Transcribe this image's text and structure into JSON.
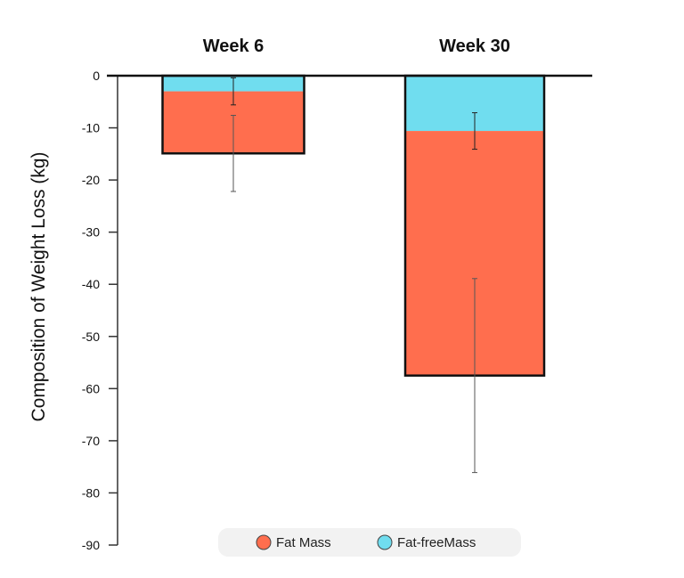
{
  "chart_data": {
    "type": "bar",
    "stacked": true,
    "title": "",
    "xlabel": "",
    "ylabel": "Composition of Weight Loss (kg)",
    "ylim": [
      -90,
      0
    ],
    "yticks": [
      0,
      -10,
      -20,
      -30,
      -40,
      -50,
      -60,
      -70,
      -80,
      -90
    ],
    "categories": [
      "Week 6",
      "Week 30"
    ],
    "category_labels_position": "top",
    "grid": false,
    "legend_position": "bottom",
    "series": [
      {
        "name": "Fat-freeMass",
        "values": [
          -3.0,
          -10.6
        ],
        "cumulative_end": [
          -3.0,
          -10.6
        ],
        "error": [
          2.6,
          3.5
        ],
        "color": "#70DDEF"
      },
      {
        "name": "Fat Mass",
        "values": [
          -11.9,
          -46.9
        ],
        "cumulative_end": [
          -14.9,
          -57.5
        ],
        "error": [
          7.3,
          18.6
        ],
        "color": "#FF6E4E"
      }
    ],
    "legend": [
      {
        "name": "Fat Mass",
        "color": "#FF6E4E"
      },
      {
        "name": "Fat-freeMass",
        "color": "#70DDEF"
      }
    ]
  }
}
